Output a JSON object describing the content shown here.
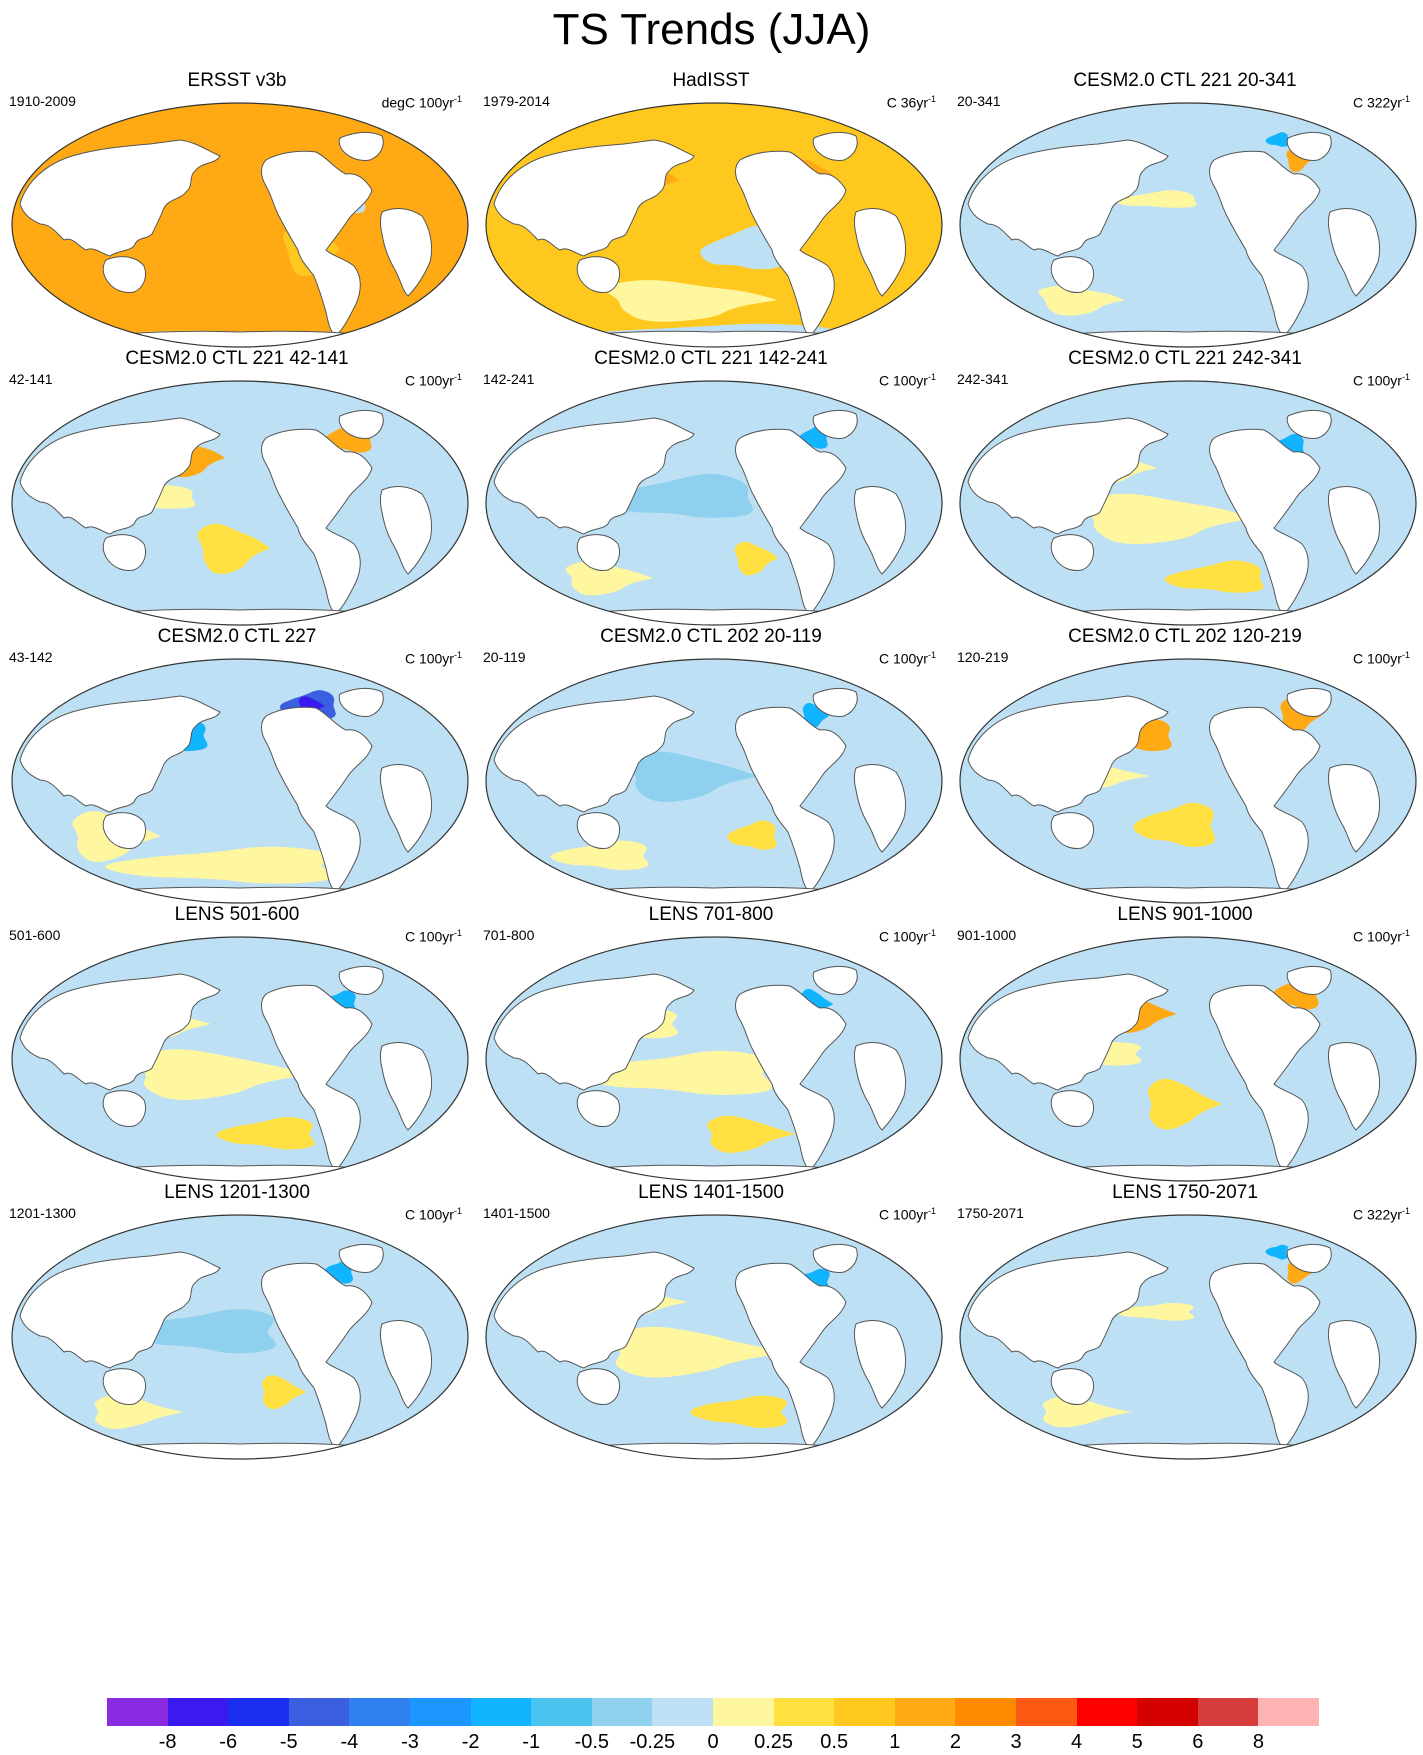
{
  "figure": {
    "title": "TS Trends (JJA)"
  },
  "panels": [
    {
      "title": "ERSST v3b",
      "left": "1910-2009",
      "right_prefix": "degC 100yr",
      "right_sup": "-1",
      "pattern": "warm_strong"
    },
    {
      "title": "HadISST",
      "left": "1979-2014",
      "right_prefix": "C 36yr",
      "right_sup": "-1",
      "pattern": "warm_mixed"
    },
    {
      "title": "CESM2.0 CTL 221 20-341",
      "left": "20-341",
      "right_prefix": "C 322yr",
      "right_sup": "-1",
      "pattern": "cool_weak"
    },
    {
      "title": "CESM2.0 CTL 221 42-141",
      "left": "42-141",
      "right_prefix": "C 100yr",
      "right_sup": "-1",
      "pattern": "mixed_warm"
    },
    {
      "title": "CESM2.0 CTL 221 142-241",
      "left": "142-241",
      "right_prefix": "C 100yr",
      "right_sup": "-1",
      "pattern": "cool_mixed"
    },
    {
      "title": "CESM2.0 CTL 221 242-341",
      "left": "242-341",
      "right_prefix": "C 100yr",
      "right_sup": "-1",
      "pattern": "mixed"
    },
    {
      "title": "CESM2.0 CTL 227",
      "left": "43-142",
      "right_prefix": "C 100yr",
      "right_sup": "-1",
      "pattern": "cold_atlantic"
    },
    {
      "title": "CESM2.0 CTL 202 20-119",
      "left": "20-119",
      "right_prefix": "C 100yr",
      "right_sup": "-1",
      "pattern": "cool_mixed"
    },
    {
      "title": "CESM2.0 CTL 202 120-219",
      "left": "120-219",
      "right_prefix": "C 100yr",
      "right_sup": "-1",
      "pattern": "mixed_warm"
    },
    {
      "title": "LENS 501-600",
      "left": "501-600",
      "right_prefix": "C 100yr",
      "right_sup": "-1",
      "pattern": "mixed"
    },
    {
      "title": "LENS 701-800",
      "left": "701-800",
      "right_prefix": "C 100yr",
      "right_sup": "-1",
      "pattern": "mixed"
    },
    {
      "title": "LENS 901-1000",
      "left": "901-1000",
      "right_prefix": "C 100yr",
      "right_sup": "-1",
      "pattern": "mixed_warm"
    },
    {
      "title": "LENS 1201-1300",
      "left": "1201-1300",
      "right_prefix": "C 100yr",
      "right_sup": "-1",
      "pattern": "cool_mixed"
    },
    {
      "title": "LENS 1401-1500",
      "left": "1401-1500",
      "right_prefix": "C 100yr",
      "right_sup": "-1",
      "pattern": "mixed"
    },
    {
      "title": "LENS 1750-2071",
      "left": "1750-2071",
      "right_prefix": "C 322yr",
      "right_sup": "-1",
      "pattern": "cool_weak"
    }
  ],
  "colorbar": {
    "colors": [
      "#8a2be2",
      "#3a1af0",
      "#1a2ef0",
      "#3a5fe0",
      "#3080f0",
      "#1e96ff",
      "#10b4ff",
      "#4cc4f0",
      "#8ed0ee",
      "#bde0f4",
      "#fff7a0",
      "#ffe040",
      "#ffc81e",
      "#ffaa14",
      "#ff8c00",
      "#ff5a14",
      "#ff0000",
      "#d40000",
      "#d63c3c",
      "#ffb4b4"
    ],
    "labels": [
      "-8",
      "-6",
      "-5",
      "-4",
      "-3",
      "-2",
      "-1",
      "-0.5",
      "-0.25",
      "0",
      "0.25",
      "0.5",
      "1",
      "2",
      "3",
      "4",
      "5",
      "6",
      "8"
    ]
  }
}
